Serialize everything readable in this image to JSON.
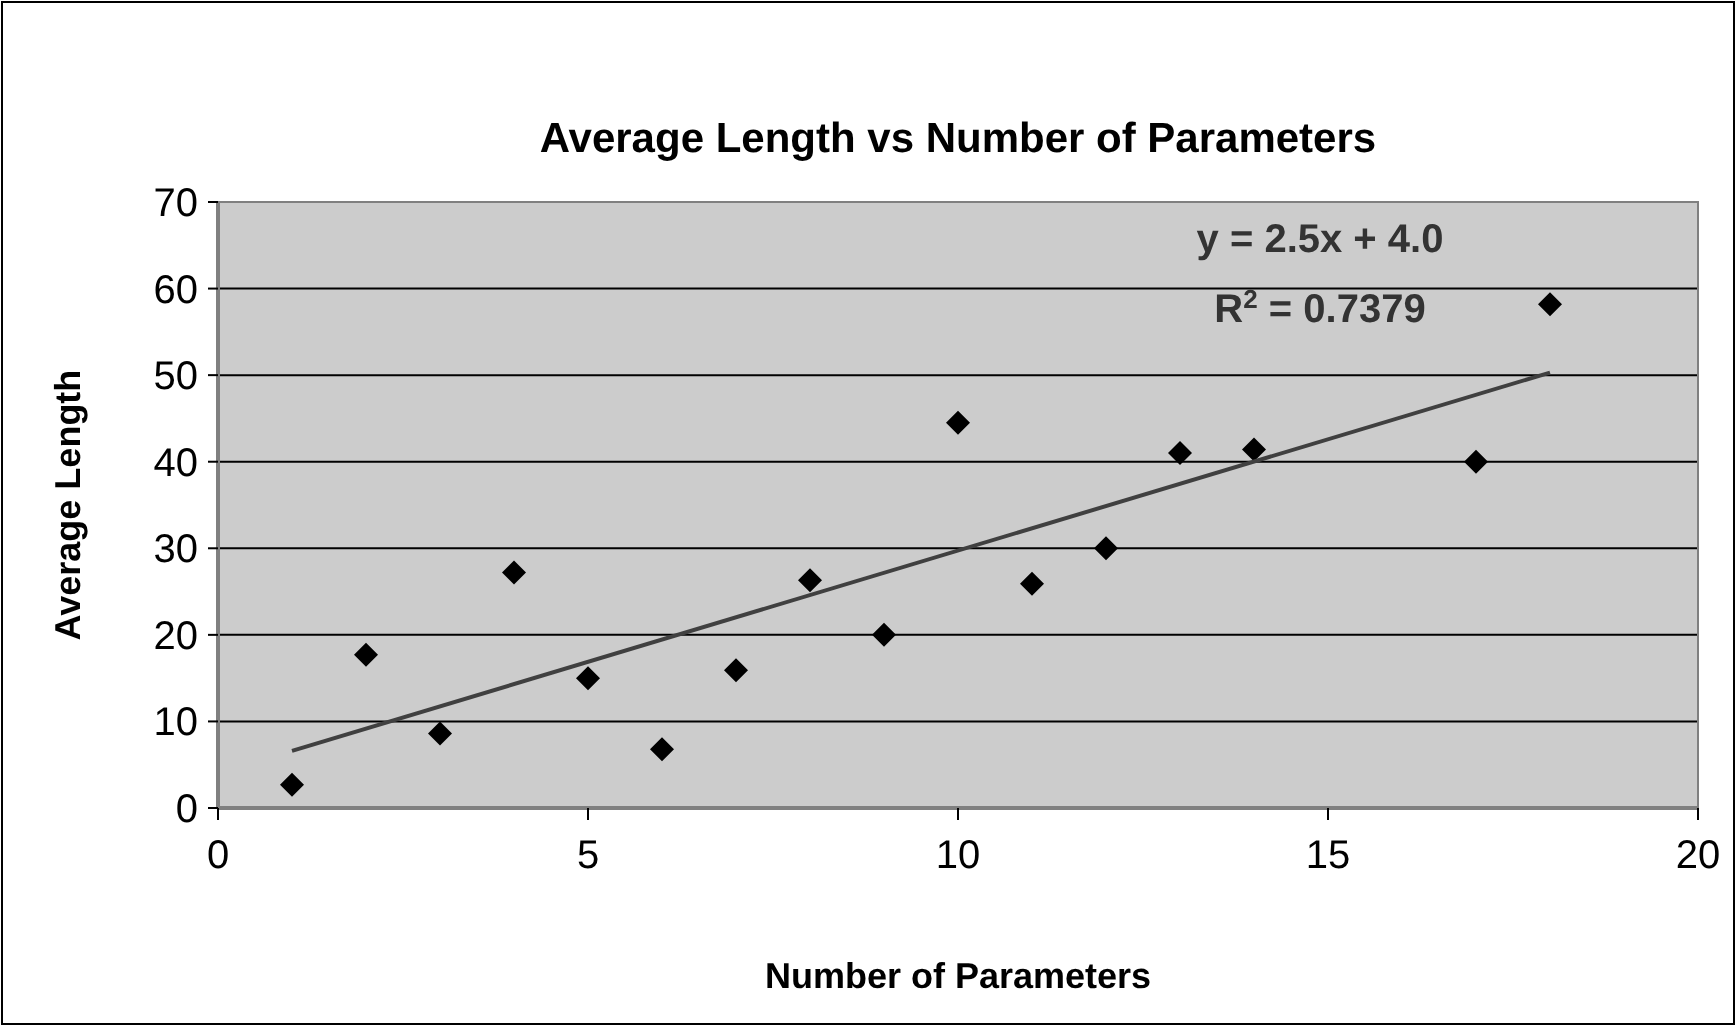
{
  "chart_data": {
    "type": "scatter",
    "title": "Average Length vs Number of Parameters",
    "xlabel": "Number of Parameters",
    "ylabel": "Average Length",
    "series": [
      {
        "color": "#000000",
        "marker": "diamond",
        "x": [
          1,
          2,
          3,
          4,
          5,
          6,
          7,
          8,
          9,
          10,
          11,
          12,
          13,
          14,
          17,
          18
        ],
        "values": [
          2.7,
          17.7,
          8.6,
          27.2,
          15.0,
          6.8,
          15.9,
          26.3,
          20.0,
          44.5,
          25.9,
          30.0,
          41.0,
          41.4,
          40.0,
          58.2
        ]
      },
      {
        "type": "line",
        "color": "#404040",
        "marker": "none",
        "line_style": "solid",
        "x": [
          1,
          18
        ],
        "values": [
          6.6,
          50.3
        ]
      }
    ],
    "annotations": [
      "y = 2.5x + 4.0",
      "R$^{2}$ = 0.7379"
    ],
    "xlim": [
      0,
      20
    ],
    "xticks": [
      0,
      5,
      10,
      15,
      20
    ],
    "ylim": [
      0,
      70
    ],
    "yticks": [
      0,
      10,
      20,
      30,
      40,
      50,
      60,
      70
    ],
    "grid": "y"
  }
}
